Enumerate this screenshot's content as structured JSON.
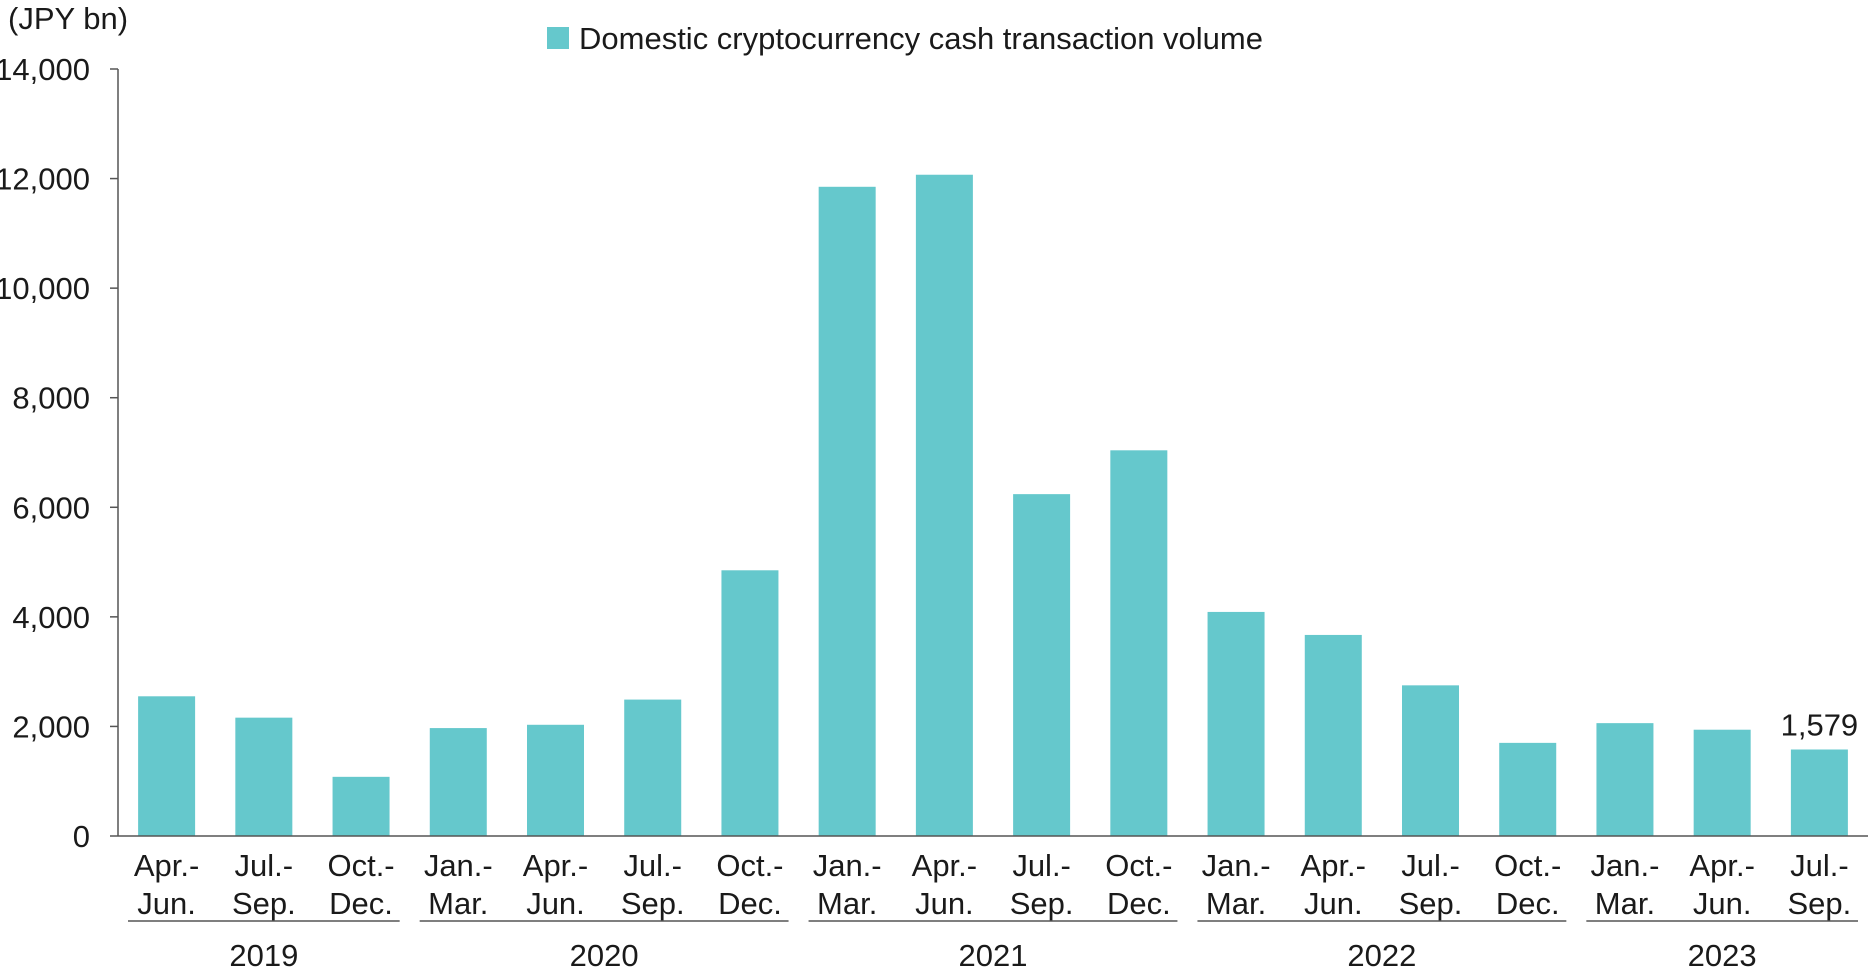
{
  "chart_data": {
    "type": "bar",
    "unit_label": "(JPY bn)",
    "legend": {
      "position": "top-center",
      "entries": [
        {
          "name": "Domestic cryptocurrency cash transaction volume",
          "color": "#65C8CC"
        }
      ]
    },
    "ylim": [
      0,
      14000
    ],
    "yticks": [
      "0",
      "2,000",
      "4,000",
      "6,000",
      "8,000",
      "10,000",
      "12,000",
      "14,000"
    ],
    "ytick_values": [
      0,
      2000,
      4000,
      6000,
      8000,
      10000,
      12000,
      14000
    ],
    "grid": false,
    "categories": [
      [
        "Apr.-",
        "Jun."
      ],
      [
        "Jul.-",
        "Sep."
      ],
      [
        "Oct.-",
        "Dec."
      ],
      [
        "Jan.-",
        "Mar."
      ],
      [
        "Apr.-",
        "Jun."
      ],
      [
        "Jul.-",
        "Sep."
      ],
      [
        "Oct.-",
        "Dec."
      ],
      [
        "Jan.-",
        "Mar."
      ],
      [
        "Apr.-",
        "Jun."
      ],
      [
        "Jul.-",
        "Sep."
      ],
      [
        "Oct.-",
        "Dec."
      ],
      [
        "Jan.-",
        "Mar."
      ],
      [
        "Apr.-",
        "Jun."
      ],
      [
        "Jul.-",
        "Sep."
      ],
      [
        "Oct.-",
        "Dec."
      ],
      [
        "Jan.-",
        "Mar."
      ],
      [
        "Apr.-",
        "Jun."
      ],
      [
        "Jul.-",
        "Sep."
      ]
    ],
    "year_groups": [
      {
        "label": "2019",
        "count": 3
      },
      {
        "label": "2020",
        "count": 4
      },
      {
        "label": "2021",
        "count": 4
      },
      {
        "label": "2022",
        "count": 4
      },
      {
        "label": "2023",
        "count": 3
      }
    ],
    "series": [
      {
        "name": "Domestic cryptocurrency cash transaction volume",
        "color": "#65C8CC",
        "values": [
          2550,
          2160,
          1080,
          1970,
          2030,
          2490,
          4850,
          11850,
          12070,
          6240,
          7040,
          4090,
          3670,
          2750,
          1700,
          2060,
          1940,
          1579
        ]
      }
    ],
    "data_labels": [
      {
        "index": 17,
        "text": "1,579"
      }
    ]
  }
}
